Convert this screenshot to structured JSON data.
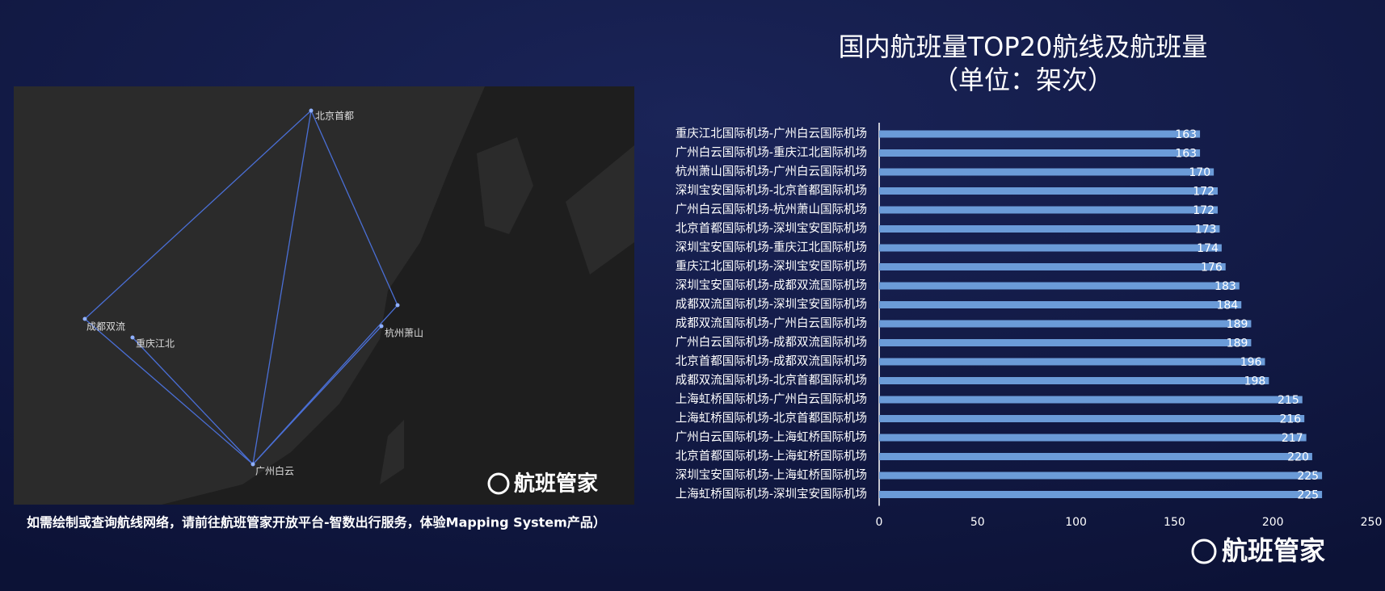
{
  "chart_data": {
    "type": "hbar",
    "title": "国内航班量TOP20航线及航班量",
    "subtitle": "（单位：架次）",
    "categories": [
      "重庆江北国际机场-广州白云国际机场",
      "广州白云国际机场-重庆江北国际机场",
      "杭州萧山国际机场-广州白云国际机场",
      "深圳宝安国际机场-北京首都国际机场",
      "广州白云国际机场-杭州萧山国际机场",
      "北京首都国际机场-深圳宝安国际机场",
      "深圳宝安国际机场-重庆江北国际机场",
      "重庆江北国际机场-深圳宝安国际机场",
      "深圳宝安国际机场-成都双流国际机场",
      "成都双流国际机场-深圳宝安国际机场",
      "成都双流国际机场-广州白云国际机场",
      "广州白云国际机场-成都双流国际机场",
      "北京首都国际机场-成都双流国际机场",
      "成都双流国际机场-北京首都国际机场",
      "上海虹桥国际机场-广州白云国际机场",
      "上海虹桥国际机场-北京首都国际机场",
      "广州白云国际机场-上海虹桥国际机场",
      "北京首都国际机场-上海虹桥国际机场",
      "深圳宝安国际机场-上海虹桥国际机场",
      "上海虹桥国际机场-深圳宝安国际机场"
    ],
    "values": [
      163,
      163,
      170,
      172,
      172,
      173,
      174,
      176,
      183,
      184,
      189,
      189,
      196,
      198,
      215,
      216,
      217,
      220,
      225,
      225
    ],
    "color": "#6b9bd8",
    "xlim": [
      0,
      250
    ],
    "xticks": [
      0,
      50,
      100,
      150,
      200,
      250
    ]
  },
  "map": {
    "cities": [
      "北京首都",
      "成都双流",
      "重庆江北",
      "杭州萧山",
      "广州白云"
    ],
    "logo": "航班管家"
  },
  "caption": "如需绘制或查询航线网络，请前往航班管家开放平台-智数出行服务，体验Mapping System产品）",
  "logo": "航班管家"
}
